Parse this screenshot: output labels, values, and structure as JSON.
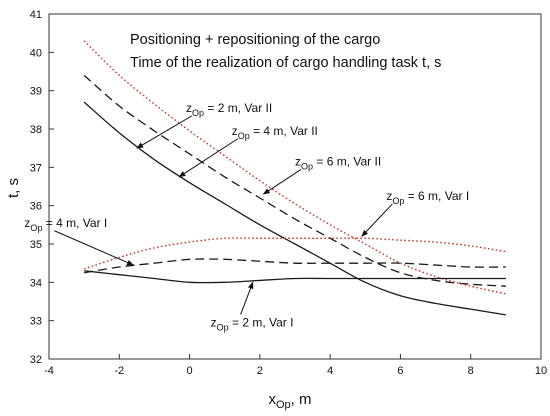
{
  "chart_data": {
    "type": "line",
    "title_lines": [
      "Positioning + repositioning of the cargo",
      "Time of the realization of cargo handling task  t, s"
    ],
    "xlabel": {
      "base": "x",
      "sub": "Op",
      "rest": ", m"
    },
    "ylabel": "t, s",
    "xlim": [
      -4,
      10
    ],
    "ylim": [
      32,
      41
    ],
    "x_ticks": [
      -4,
      -2,
      0,
      2,
      4,
      6,
      8,
      10
    ],
    "y_ticks": [
      32,
      33,
      34,
      35,
      36,
      37,
      38,
      39,
      40,
      41
    ],
    "x_tick_labels": [
      "-4",
      "-2",
      "0",
      "2",
      "4",
      "6",
      "8",
      "10"
    ],
    "y_tick_labels": [
      "32",
      "33",
      "34",
      "35",
      "36",
      "37",
      "38",
      "39",
      "40",
      "41"
    ],
    "grid": false,
    "series": [
      {
        "label": "zOp = 2 m, Var II",
        "style": "solid",
        "color": "#1a1a1a",
        "x": [
          -3,
          -2,
          -1,
          0,
          1,
          2,
          3,
          4,
          5,
          6,
          7,
          8,
          9
        ],
        "y": [
          38.7,
          37.9,
          37.2,
          36.6,
          36.05,
          35.5,
          35.0,
          34.5,
          34.0,
          33.65,
          33.45,
          33.3,
          33.15
        ]
      },
      {
        "label": "zOp = 4 m, Var II",
        "style": "dashed",
        "color": "#1a1a1a",
        "x": [
          -3,
          -2,
          -1,
          0,
          1,
          2,
          3,
          4,
          5,
          6,
          7,
          8,
          9
        ],
        "y": [
          39.4,
          38.6,
          37.95,
          37.35,
          36.75,
          36.2,
          35.65,
          35.15,
          34.65,
          34.25,
          34.05,
          33.95,
          33.9
        ]
      },
      {
        "label": "zOp = 6 m, Var II",
        "style": "dotted",
        "color": "#c0392b",
        "x": [
          -3,
          -2,
          -1,
          0,
          1,
          2,
          3,
          4,
          5,
          6,
          7,
          8,
          9
        ],
        "y": [
          40.3,
          39.4,
          38.65,
          37.95,
          37.3,
          36.65,
          36.05,
          35.5,
          35.0,
          34.5,
          34.15,
          33.9,
          33.7
        ]
      },
      {
        "label": "zOp = 2 m, Var I",
        "style": "solid",
        "color": "#1a1a1a",
        "x": [
          -3,
          -2,
          -1,
          0,
          1,
          2,
          3,
          4,
          5,
          6,
          7,
          8,
          9
        ],
        "y": [
          34.3,
          34.2,
          34.1,
          34.0,
          34.0,
          34.05,
          34.1,
          34.1,
          34.1,
          34.1,
          34.1,
          34.1,
          34.1
        ]
      },
      {
        "label": "zOp = 4 m, Var I",
        "style": "dashed",
        "color": "#1a1a1a",
        "x": [
          -3,
          -2,
          -1,
          0,
          1,
          2,
          3,
          4,
          5,
          6,
          7,
          8,
          9
        ],
        "y": [
          34.25,
          34.4,
          34.5,
          34.6,
          34.6,
          34.55,
          34.5,
          34.5,
          34.5,
          34.5,
          34.45,
          34.4,
          34.4
        ]
      },
      {
        "label": "zOp = 6 m, Var I",
        "style": "dotted",
        "color": "#c0392b",
        "x": [
          -3,
          -2,
          -1,
          0,
          1,
          2,
          3,
          4,
          5,
          6,
          7,
          8,
          9
        ],
        "y": [
          34.35,
          34.65,
          34.9,
          35.05,
          35.15,
          35.15,
          35.15,
          35.15,
          35.15,
          35.1,
          35.05,
          34.95,
          34.8
        ]
      }
    ],
    "annotations": [
      {
        "name": "anno-z2-var2",
        "base": "z",
        "sub": "Op",
        "rest": " = 2 m, Var II",
        "text_x": -0.1,
        "text_y": 38.45,
        "point_x": -1.5,
        "point_y": 37.5
      },
      {
        "name": "anno-z4-var2",
        "base": "z",
        "sub": "Op",
        "rest": " = 4 m, Var II",
        "text_x": 1.2,
        "text_y": 37.85,
        "point_x": -0.3,
        "point_y": 36.75
      },
      {
        "name": "anno-z6-var2",
        "base": "z",
        "sub": "Op",
        "rest": " = 6 m, Var II",
        "text_x": 3.0,
        "text_y": 37.05,
        "point_x": 2.1,
        "point_y": 36.3
      },
      {
        "name": "anno-z6-var1",
        "base": "z",
        "sub": "Op",
        "rest": " = 6 m, Var I",
        "text_x": 5.6,
        "text_y": 36.15,
        "point_x": 4.9,
        "point_y": 35.2
      },
      {
        "name": "anno-z4-var1",
        "base": "z",
        "sub": "Op",
        "rest": " = 4 m, Var I",
        "text_x": -4.7,
        "text_y": 35.45,
        "point_x": -1.6,
        "point_y": 34.45
      },
      {
        "name": "anno-z2-var1",
        "base": "z",
        "sub": "Op",
        "rest": " = 2 m, Var I",
        "text_x": 0.6,
        "text_y": 32.85,
        "point_x": 1.8,
        "point_y": 34.0
      }
    ]
  }
}
